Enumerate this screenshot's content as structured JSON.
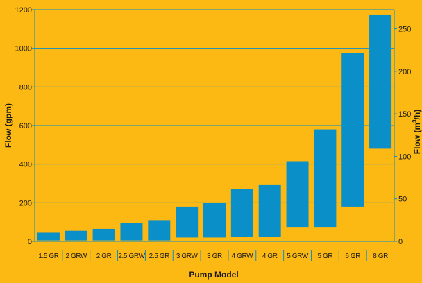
{
  "chart_data": {
    "type": "bar",
    "subtype": "floating-range",
    "xlabel": "Pump Model",
    "ylabel": "Flow (gpm)",
    "y2label": {
      "main": "Flow (m",
      "sup": "3",
      "tail": "/h)"
    },
    "ylim": [
      0,
      1200
    ],
    "y2lim": [
      0,
      272.5
    ],
    "yticks": [
      0,
      200,
      400,
      600,
      800,
      1000,
      1200
    ],
    "y2ticks": [
      0,
      50,
      100,
      150,
      200,
      250
    ],
    "grid": true,
    "categories": [
      "1.5 GR",
      "2 GRW",
      "2 GR",
      "2.5 GRW",
      "2.5 GR",
      "3 GRW",
      "3 GR",
      "4 GRW",
      "4 GR",
      "5 GRW",
      "5 GR",
      "6 GR",
      "8 GR"
    ],
    "series": [
      {
        "low": [
          5,
          5,
          5,
          5,
          5,
          20,
          20,
          25,
          25,
          75,
          75,
          180,
          480
        ],
        "high": [
          45,
          55,
          65,
          95,
          110,
          180,
          200,
          270,
          295,
          415,
          580,
          975,
          1175
        ]
      }
    ]
  },
  "colors": {
    "background": "#fdb913",
    "bar": "#0a8fc9",
    "grid": "#0a8fc9",
    "text": "#1a1a1a"
  }
}
